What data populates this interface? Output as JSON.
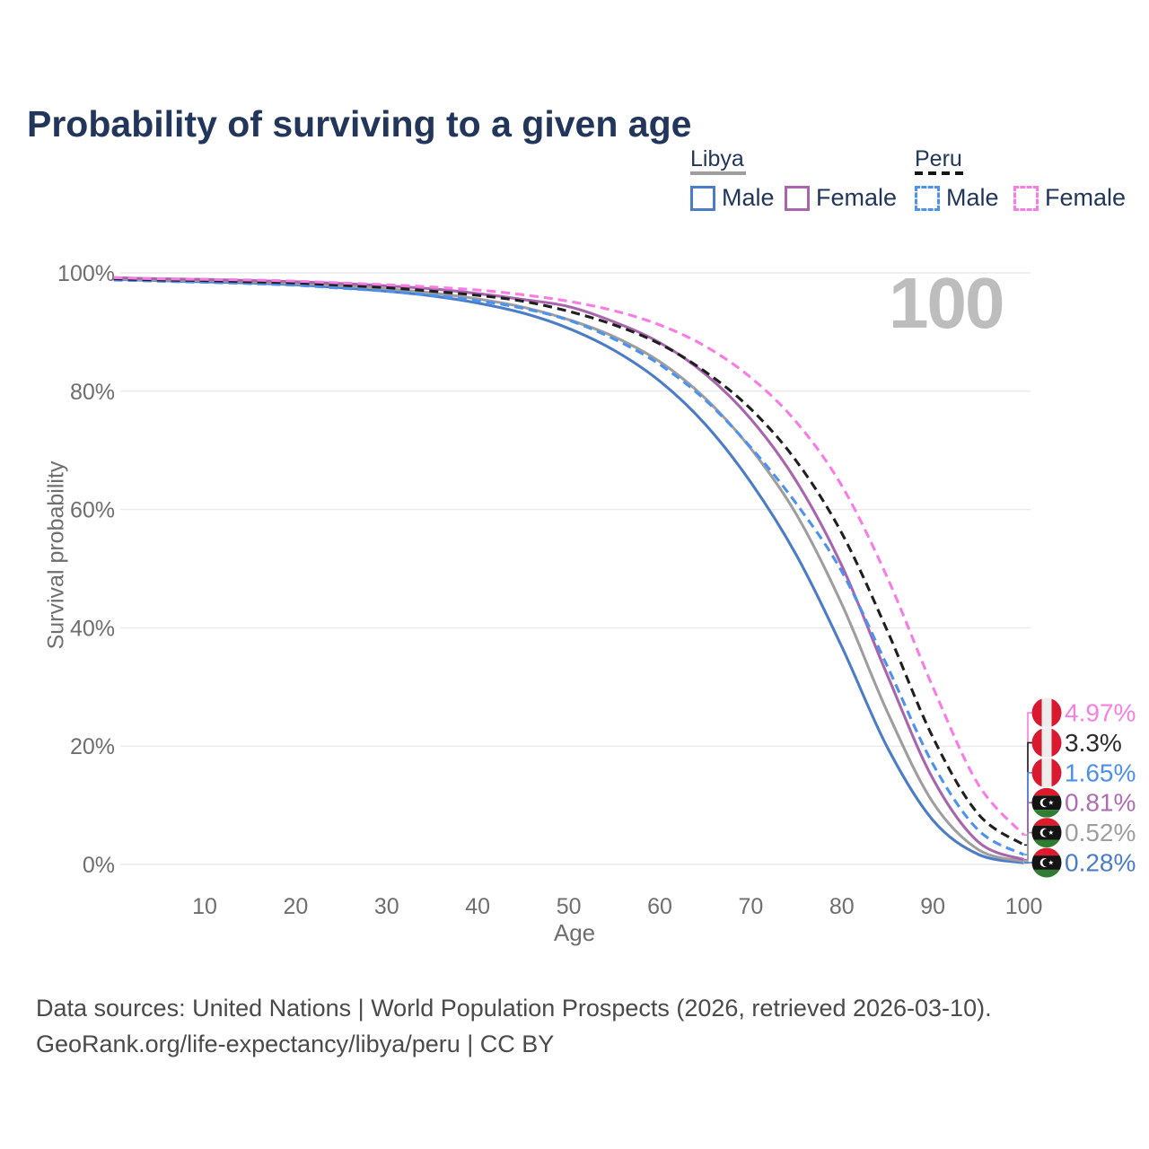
{
  "title": "Probability of surviving to a given age",
  "watermark": "100",
  "legend": {
    "libya": {
      "title": "Libya",
      "male": "Male",
      "female": "Female"
    },
    "peru": {
      "title": "Peru",
      "male": "Male",
      "female": "Female"
    }
  },
  "footer": {
    "line1": "Data sources: United Nations | World Population Prospects (2026, retrieved 2026-03-10).",
    "line2": "GeoRank.org/life-expectancy/libya/peru | CC BY"
  },
  "chart_data": {
    "type": "line",
    "title": "Probability of surviving to a given age",
    "xlabel": "Age",
    "ylabel": "Survival probability",
    "xlim": [
      0,
      100
    ],
    "ylim": [
      0,
      100
    ],
    "xticks": [
      10,
      20,
      30,
      40,
      50,
      60,
      70,
      80,
      90,
      100
    ],
    "yticks": [
      0,
      20,
      40,
      60,
      80,
      100
    ],
    "ytick_suffix": "%",
    "grid": "horizontal-only",
    "legend_position": "top-right",
    "ages": [
      0,
      5,
      10,
      15,
      20,
      25,
      30,
      35,
      40,
      45,
      50,
      55,
      60,
      65,
      70,
      75,
      80,
      85,
      90,
      95,
      100
    ],
    "series": [
      {
        "key": "libya-male",
        "name": "Libya Male",
        "country": "Libya",
        "sex": "male",
        "flag": "libya",
        "color": "#4A7CC7",
        "label_color": "#4A7CC7",
        "line": "solid",
        "end_label": "0.28%",
        "end_value": 0.28,
        "values": [
          98.9,
          98.7,
          98.5,
          98.3,
          98.0,
          97.5,
          96.9,
          96.1,
          94.9,
          93.2,
          90.6,
          86.9,
          81.7,
          74.4,
          64.6,
          52.3,
          36.8,
          19.8,
          7.5,
          1.7,
          0.28
        ]
      },
      {
        "key": "libya-both",
        "name": "Libya Both sexes",
        "country": "Libya",
        "sex": "both",
        "flag": "libya",
        "color": "#9E9E9E",
        "label_color": "#9E9E9E",
        "line": "solid",
        "end_label": "0.52%",
        "end_value": 0.52,
        "values": [
          99.0,
          98.8,
          98.7,
          98.5,
          98.2,
          97.8,
          97.3,
          96.6,
          95.6,
          94.2,
          92.1,
          89.2,
          85.0,
          78.8,
          70.3,
          59.2,
          44.0,
          25.8,
          10.5,
          2.5,
          0.52
        ]
      },
      {
        "key": "libya-female",
        "name": "Libya Female",
        "country": "Libya",
        "sex": "female",
        "flag": "libya",
        "color": "#A964AE",
        "label_color": "#AE6DB1",
        "line": "solid",
        "end_label": "0.81%",
        "end_value": 0.81,
        "values": [
          99.2,
          99.0,
          98.9,
          98.7,
          98.5,
          98.2,
          97.8,
          97.3,
          96.5,
          95.5,
          94.3,
          91.7,
          88.2,
          82.9,
          75.3,
          64.8,
          50.5,
          32.0,
          14.5,
          3.8,
          0.81
        ]
      },
      {
        "key": "peru-male",
        "name": "Peru Male",
        "country": "Peru",
        "sex": "male",
        "flag": "peru",
        "color": "#4D92F0",
        "label_color": "#4D8FEC",
        "line": "dashed",
        "end_label": "1.65%",
        "end_value": 1.65,
        "values": [
          98.8,
          98.6,
          98.4,
          98.2,
          97.9,
          97.4,
          96.9,
          96.2,
          95.3,
          94.0,
          92.0,
          88.8,
          84.5,
          78.5,
          70.5,
          61.0,
          49.5,
          33.5,
          17.0,
          5.8,
          1.65
        ]
      },
      {
        "key": "peru-both",
        "name": "Peru Both sexes",
        "country": "Peru",
        "sex": "both",
        "flag": "peru",
        "color": "#1F1F1F",
        "label_color": "#2B2B2B",
        "line": "dashed",
        "end_label": "3.3%",
        "end_value": 3.3,
        "values": [
          99.0,
          98.8,
          98.7,
          98.5,
          98.3,
          97.9,
          97.5,
          96.9,
          96.2,
          95.2,
          93.5,
          91.2,
          88.0,
          83.3,
          77.0,
          68.2,
          56.0,
          39.5,
          21.5,
          8.5,
          3.3
        ]
      },
      {
        "key": "peru-female",
        "name": "Peru Female",
        "country": "Peru",
        "sex": "female",
        "flag": "peru",
        "color": "#F97CE5",
        "label_color": "#F77FE3",
        "line": "dashed",
        "end_label": "4.97%",
        "end_value": 4.97,
        "values": [
          99.2,
          99.0,
          98.9,
          98.8,
          98.6,
          98.3,
          98.0,
          97.6,
          97.1,
          96.3,
          95.2,
          93.6,
          91.2,
          87.6,
          82.3,
          74.8,
          64.0,
          48.5,
          30.0,
          13.5,
          4.97
        ]
      }
    ],
    "flag_colors": {
      "peru": {
        "red": "#D8192F",
        "white": "#EDEDED"
      },
      "libya": {
        "red": "#DD1B2D",
        "black": "#141414",
        "green": "#2E7D32",
        "emblem": "#FFFFFF"
      }
    },
    "legend_line_colors": {
      "libya": "#9E9E9E",
      "peru": "#141414"
    }
  }
}
